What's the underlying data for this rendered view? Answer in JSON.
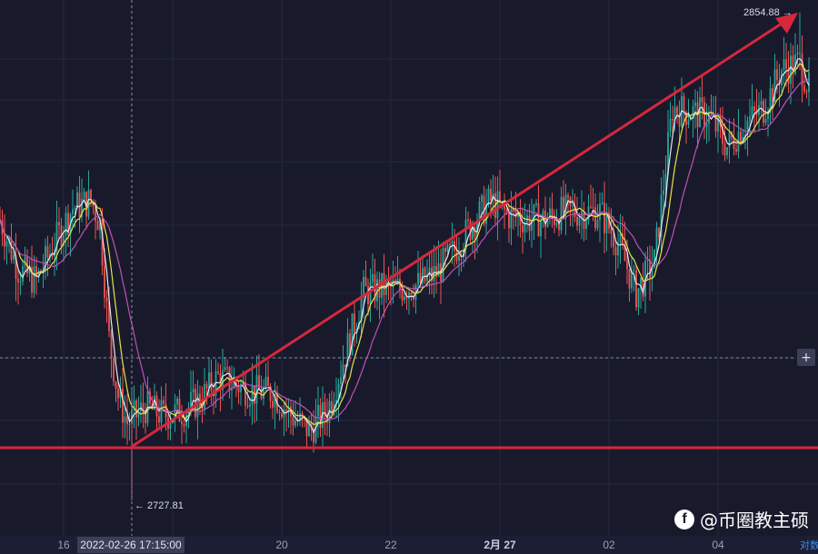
{
  "chart_data": {
    "type": "candlestick",
    "x_ticks": [
      "16",
      "20",
      "22",
      "2月 27",
      "02",
      "04"
    ],
    "crosshair_label": "2022-02-26 17:15:00",
    "max_label": "2854.88 →",
    "min_label": "← 2727.81",
    "max_price": 2854.88,
    "min_price": 2727.81,
    "support_line_price": 2739.5,
    "corner_text": "对数",
    "indicators": [
      "MA (white)",
      "MA (yellow)",
      "MA (magenta)"
    ],
    "colors": {
      "background": "#181a2c",
      "up": "#26a69a",
      "down": "#ef5350",
      "ma_fast": "#e6e6ef",
      "ma_mid": "#e8e34a",
      "ma_slow": "#c04fb8",
      "annotation": "#d5283c"
    },
    "price_path": [
      [
        0,
        2801
      ],
      [
        20,
        2788
      ],
      [
        40,
        2785
      ],
      [
        60,
        2795
      ],
      [
        80,
        2804
      ],
      [
        100,
        2806
      ],
      [
        110,
        2800
      ],
      [
        120,
        2770
      ],
      [
        130,
        2755
      ],
      [
        140,
        2748
      ],
      [
        160,
        2752
      ],
      [
        180,
        2750
      ],
      [
        200,
        2751
      ],
      [
        220,
        2754
      ],
      [
        240,
        2760
      ],
      [
        260,
        2758
      ],
      [
        280,
        2756
      ],
      [
        300,
        2756
      ],
      [
        320,
        2750
      ],
      [
        340,
        2746
      ],
      [
        360,
        2751
      ],
      [
        380,
        2766
      ],
      [
        400,
        2782
      ],
      [
        420,
        2783
      ],
      [
        440,
        2783
      ],
      [
        460,
        2784
      ],
      [
        480,
        2787
      ],
      [
        500,
        2793
      ],
      [
        520,
        2800
      ],
      [
        540,
        2806
      ],
      [
        560,
        2802
      ],
      [
        580,
        2801
      ],
      [
        600,
        2801
      ],
      [
        620,
        2803
      ],
      [
        640,
        2803
      ],
      [
        660,
        2803
      ],
      [
        680,
        2795
      ],
      [
        700,
        2782
      ],
      [
        720,
        2790
      ],
      [
        740,
        2830
      ],
      [
        760,
        2829
      ],
      [
        780,
        2828
      ],
      [
        800,
        2820
      ],
      [
        820,
        2826
      ],
      [
        840,
        2830
      ],
      [
        860,
        2840
      ],
      [
        880,
        2842
      ],
      [
        890,
        2835
      ]
    ]
  },
  "watermark": {
    "logo": "f",
    "text": "@币圈教主硕"
  }
}
